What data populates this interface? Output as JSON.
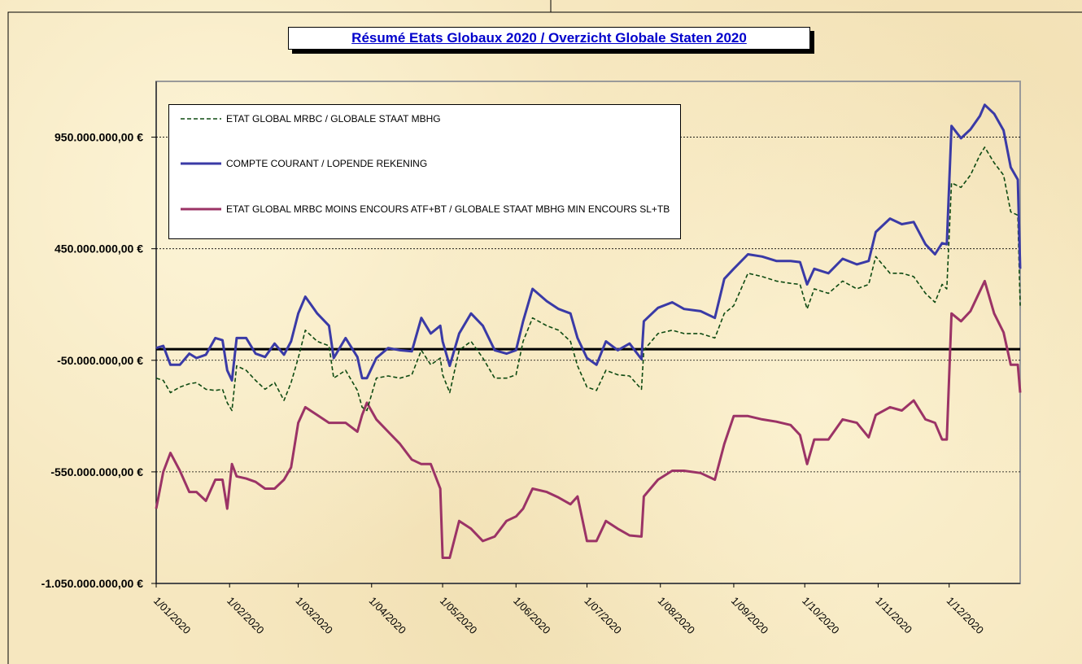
{
  "chart_data": {
    "type": "line",
    "title": "Résumé Etats Globaux 2020 / Overzicht Globale Staten 2020",
    "x": [
      "1/01/2020",
      "4/01/2020",
      "7/01/2020",
      "11/01/2020",
      "15/01/2020",
      "18/01/2020",
      "22/01/2020",
      "26/01/2020",
      "29/01/2020",
      "31/01/2020",
      "2/02/2020",
      "4/02/2020",
      "8/02/2020",
      "12/02/2020",
      "16/02/2020",
      "20/02/2020",
      "24/02/2020",
      "27/02/2020",
      "1/03/2020",
      "4/03/2020",
      "9/03/2020",
      "14/03/2020",
      "16/03/2020",
      "21/03/2020",
      "26/03/2020",
      "28/03/2020",
      "30/03/2020",
      "3/04/2020",
      "8/04/2020",
      "13/04/2020",
      "18/04/2020",
      "22/04/2020",
      "26/04/2020",
      "30/04/2020",
      "1/05/2020",
      "4/05/2020",
      "8/05/2020",
      "13/05/2020",
      "18/05/2020",
      "23/05/2020",
      "28/05/2020",
      "1/06/2020",
      "4/06/2020",
      "8/06/2020",
      "14/06/2020",
      "19/06/2020",
      "24/06/2020",
      "27/06/2020",
      "1/07/2020",
      "5/07/2020",
      "9/07/2020",
      "14/07/2020",
      "19/07/2020",
      "24/07/2020",
      "25/07/2020",
      "31/07/2020",
      "6/08/2020",
      "11/08/2020",
      "18/08/2020",
      "24/08/2020",
      "28/08/2020",
      "1/09/2020",
      "7/09/2020",
      "13/09/2020",
      "19/09/2020",
      "25/09/2020",
      "29/09/2020",
      "2/10/2020",
      "5/10/2020",
      "11/10/2020",
      "17/10/2020",
      "23/10/2020",
      "28/10/2020",
      "31/10/2020",
      "6/11/2020",
      "11/11/2020",
      "16/11/2020",
      "21/11/2020",
      "25/11/2020",
      "28/11/2020",
      "30/11/2020",
      "2/12/2020",
      "6/12/2020",
      "10/12/2020",
      "14/12/2020",
      "16/12/2020",
      "20/12/2020",
      "24/12/2020",
      "27/12/2020",
      "30/12/2020",
      "31/12/2020"
    ],
    "series": [
      {
        "name": "ETAT GLOBAL MRBC / GLOBALE STAAT MBHG",
        "color": "#0e4a12",
        "dash": true,
        "values": [
          -130000000.0,
          -140000000.0,
          -195000000.0,
          -170000000.0,
          -155000000.0,
          -150000000.0,
          -180000000.0,
          -185000000.0,
          -180000000.0,
          -240000000.0,
          -275000000.0,
          -75000000.0,
          -95000000.0,
          -140000000.0,
          -180000000.0,
          -150000000.0,
          -230000000.0,
          -150000000.0,
          -40000000.0,
          85000000.0,
          35000000.0,
          15000000.0,
          -130000000.0,
          -95000000.0,
          -185000000.0,
          -260000000.0,
          -275000000.0,
          -130000000.0,
          -120000000.0,
          -130000000.0,
          -115000000.0,
          -5000000.0,
          -70000000.0,
          -40000000.0,
          -115000000.0,
          -195000000.0,
          -5000000.0,
          35000000.0,
          -40000000.0,
          -130000000.0,
          -130000000.0,
          -115000000.0,
          35000000.0,
          140000000.0,
          105000000.0,
          85000000.0,
          35000000.0,
          -75000000.0,
          -170000000.0,
          -185000000.0,
          -95000000.0,
          -115000000.0,
          -120000000.0,
          -180000000.0,
          -5000000.0,
          70000000.0,
          85000000.0,
          70000000.0,
          70000000.0,
          50000000.0,
          160000000.0,
          195000000.0,
          340000000.0,
          325000000.0,
          305000000.0,
          295000000.0,
          290000000.0,
          180000000.0,
          270000000.0,
          250000000.0,
          305000000.0,
          270000000.0,
          290000000.0,
          415000000.0,
          340000000.0,
          340000000.0,
          325000000.0,
          250000000.0,
          210000000.0,
          290000000.0,
          270000000.0,
          745000000.0,
          725000000.0,
          780000000.0,
          870000000.0,
          905000000.0,
          835000000.0,
          780000000.0,
          615000000.0,
          600000000.0,
          195000000.0
        ]
      },
      {
        "name": "COMPTE COURANT / LOPENDE REKENING",
        "color": "#3a3aa6",
        "dash": false,
        "values": [
          5000000.0,
          15000000.0,
          -70000000.0,
          -70000000.0,
          -20000000.0,
          -40000000.0,
          -25000000.0,
          50000000.0,
          40000000.0,
          -95000000.0,
          -140000000.0,
          50000000.0,
          50000000.0,
          -20000000.0,
          -35000000.0,
          25000000.0,
          -25000000.0,
          35000000.0,
          160000000.0,
          235000000.0,
          160000000.0,
          105000000.0,
          -40000000.0,
          50000000.0,
          -35000000.0,
          -130000000.0,
          -130000000.0,
          -40000000.0,
          5000000.0,
          -5000000.0,
          -10000000.0,
          140000000.0,
          70000000.0,
          105000000.0,
          35000000.0,
          -75000000.0,
          70000000.0,
          160000000.0,
          105000000.0,
          -5000000.0,
          -20000000.0,
          -5000000.0,
          125000000.0,
          270000000.0,
          215000000.0,
          180000000.0,
          160000000.0,
          50000000.0,
          -40000000.0,
          -70000000.0,
          35000000.0,
          -5000000.0,
          25000000.0,
          -45000000.0,
          125000000.0,
          185000000.0,
          210000000.0,
          180000000.0,
          170000000.0,
          140000000.0,
          315000000.0,
          360000000.0,
          425000000.0,
          415000000.0,
          395000000.0,
          395000000.0,
          390000000.0,
          290000000.0,
          360000000.0,
          340000000.0,
          405000000.0,
          380000000.0,
          395000000.0,
          525000000.0,
          585000000.0,
          560000000.0,
          570000000.0,
          470000000.0,
          425000000.0,
          475000000.0,
          470000000.0,
          1000000000.0,
          945000000.0,
          985000000.0,
          1045000000.0,
          1095000000.0,
          1055000000.0,
          980000000.0,
          815000000.0,
          760000000.0,
          360000000.0
        ]
      },
      {
        "name": "ETAT GLOBAL MRBC MOINS ENCOURS ATF+BT / GLOBALE STAAT MBHG MIN ENCOURS SL+TB",
        "color": "#9b3366",
        "dash": false,
        "values": [
          -715000000.0,
          -550000000.0,
          -465000000.0,
          -545000000.0,
          -640000000.0,
          -640000000.0,
          -680000000.0,
          -585000000.0,
          -585000000.0,
          -715000000.0,
          -515000000.0,
          -570000000.0,
          -580000000.0,
          -595000000.0,
          -625000000.0,
          -625000000.0,
          -585000000.0,
          -530000000.0,
          -330000000.0,
          -260000000.0,
          -295000000.0,
          -330000000.0,
          -330000000.0,
          -330000000.0,
          -370000000.0,
          -295000000.0,
          -240000000.0,
          -315000000.0,
          -370000000.0,
          -425000000.0,
          -495000000.0,
          -515000000.0,
          -515000000.0,
          -625000000.0,
          -935000000.0,
          -935000000.0,
          -770000000.0,
          -805000000.0,
          -860000000.0,
          -840000000.0,
          -770000000.0,
          -750000000.0,
          -715000000.0,
          -625000000.0,
          -640000000.0,
          -665000000.0,
          -695000000.0,
          -660000000.0,
          -860000000.0,
          -860000000.0,
          -770000000.0,
          -805000000.0,
          -835000000.0,
          -840000000.0,
          -660000000.0,
          -585000000.0,
          -545000000.0,
          -545000000.0,
          -555000000.0,
          -585000000.0,
          -425000000.0,
          -300000000.0,
          -300000000.0,
          -315000000.0,
          -325000000.0,
          -340000000.0,
          -385000000.0,
          -515000000.0,
          -405000000.0,
          -405000000.0,
          -315000000.0,
          -330000000.0,
          -395000000.0,
          -295000000.0,
          -260000000.0,
          -275000000.0,
          -230000000.0,
          -315000000.0,
          -330000000.0,
          -405000000.0,
          -405000000.0,
          160000000.0,
          125000000.0,
          170000000.0,
          260000000.0,
          305000000.0,
          160000000.0,
          75000000.0,
          -70000000.0,
          -70000000.0,
          -195000000.0
        ]
      }
    ],
    "xlim": [
      "1/01/2020",
      "31/12/2020"
    ],
    "xticks": [
      "1/01/2020",
      "1/02/2020",
      "1/03/2020",
      "1/04/2020",
      "1/05/2020",
      "1/06/2020",
      "1/07/2020",
      "1/08/2020",
      "1/09/2020",
      "1/10/2020",
      "1/11/2020",
      "1/12/2020"
    ],
    "ylim": [
      -1050000000,
      1200000000
    ],
    "yticks": [
      {
        "value": -1050000000,
        "label": "-1.050.000.000,00 €"
      },
      {
        "value": -550000000,
        "label": "-550.000.000,00 €"
      },
      {
        "value": -50000000,
        "label": "-50.000.000,00 €"
      },
      {
        "value": 450000000,
        "label": "450.000.000,00 €"
      },
      {
        "value": 950000000,
        "label": "950.000.000,00 €"
      }
    ],
    "grid": true,
    "legend": "top-left"
  }
}
